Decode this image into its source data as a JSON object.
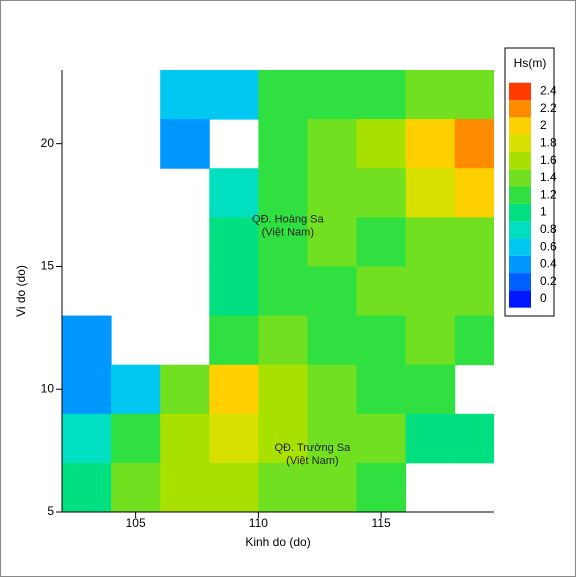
{
  "chart_data": {
    "type": "contour",
    "xlabel": "Kinh do (do)",
    "ylabel": "Vi do (do)",
    "colorbar_title": "Hs(m)",
    "xlim": [
      102,
      119.6
    ],
    "ylim": [
      5,
      23
    ],
    "xticks": [
      105,
      110,
      115
    ],
    "yticks": [
      5,
      10,
      15,
      20
    ],
    "x": [
      103,
      105,
      107,
      109,
      111,
      113,
      115,
      117,
      119
    ],
    "y": [
      22,
      20,
      18,
      16,
      14,
      12,
      10,
      8,
      6
    ],
    "values": [
      [
        null,
        null,
        0.6,
        0.6,
        1.2,
        1.3,
        1.3,
        1.4,
        1.5
      ],
      [
        null,
        null,
        0.5,
        null,
        1.2,
        1.4,
        1.6,
        2.0,
        2.3
      ],
      [
        null,
        null,
        null,
        0.9,
        1.2,
        1.4,
        1.5,
        1.8,
        2.0
      ],
      [
        null,
        null,
        null,
        1.0,
        1.3,
        1.4,
        1.3,
        1.4,
        1.4
      ],
      [
        null,
        null,
        null,
        1.1,
        1.3,
        1.3,
        1.4,
        1.5,
        1.4
      ],
      [
        0.4,
        null,
        null,
        1.3,
        1.4,
        1.3,
        1.3,
        1.4,
        1.3
      ],
      [
        0.4,
        0.7,
        1.4,
        2.1,
        1.6,
        1.4,
        1.3,
        1.3,
        null
      ],
      [
        0.9,
        1.2,
        1.7,
        1.8,
        1.6,
        1.4,
        1.4,
        1.1,
        1.0
      ],
      [
        1.1,
        1.4,
        1.6,
        1.6,
        1.5,
        1.4,
        1.3,
        null,
        null
      ]
    ],
    "levels": [
      0,
      0.2,
      0.4,
      0.6,
      0.8,
      1,
      1.2,
      1.4,
      1.6,
      1.8,
      2,
      2.2,
      2.4
    ],
    "colors": [
      "#0018ff",
      "#0060ff",
      "#0098ff",
      "#00c8f0",
      "#00e0c0",
      "#00e080",
      "#30e040",
      "#70e020",
      "#a8e000",
      "#d8e000",
      "#ffd000",
      "#ff8c00",
      "#ff3c00"
    ],
    "annotations": [
      {
        "lines": [
          "QĐ. Hoàng Sa",
          "(Việt Nam)"
        ],
        "x": 111.2,
        "y": 16.9
      },
      {
        "lines": [
          "QĐ. Trường Sa",
          "(Việt Nam)"
        ],
        "x": 112.2,
        "y": 7.6
      }
    ]
  }
}
